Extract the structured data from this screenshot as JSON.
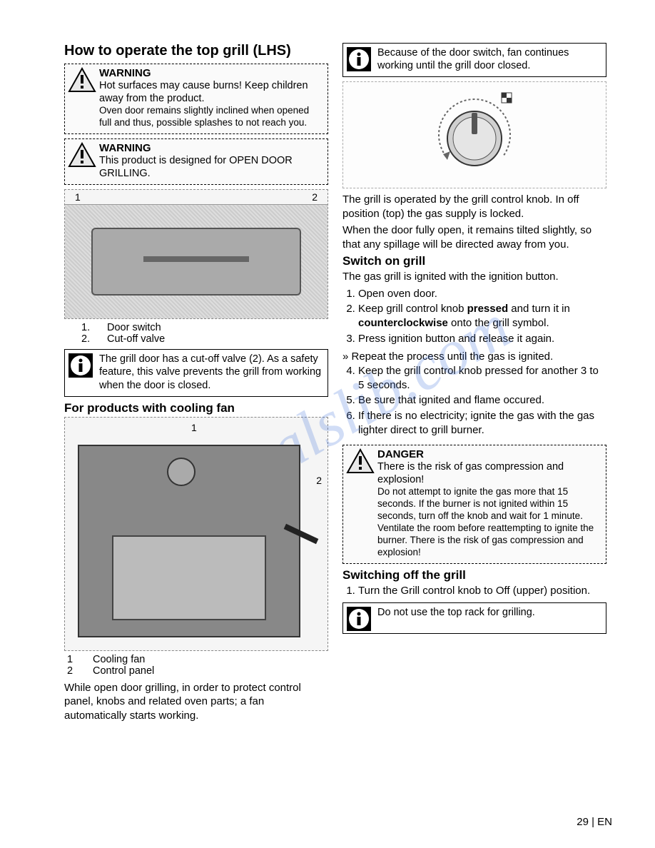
{
  "colors": {
    "text": "#000000",
    "background": "#ffffff",
    "box_border": "#000000",
    "dashed_border": "#888888",
    "diagram_fill": "#cccccc",
    "watermark": "rgba(70,120,220,0.25)"
  },
  "page_footer": "29 | EN",
  "watermark": "manualslib.com",
  "left": {
    "title": "How to operate the top grill (LHS)",
    "warn1": {
      "title": "WARNING",
      "body": "Hot surfaces may cause burns! Keep children away from the product.",
      "body2": "Oven door remains slightly inclined when opened full and thus, possible splashes to not reach you."
    },
    "warn2": {
      "title": "WARNING",
      "body": "This product is designed for OPEN DOOR GRILLING."
    },
    "diagram1_labels": {
      "n1": "1",
      "n2": "2"
    },
    "legend1": [
      {
        "n": "1.",
        "t": "Door switch"
      },
      {
        "n": "2.",
        "t": "Cut-off valve"
      }
    ],
    "info1": "The grill door has a cut-off valve (2). As a safety feature, this valve prevents the grill from working when the door is closed.",
    "subtitle2": "For products with cooling fan",
    "diagram2_labels": {
      "n1": "1",
      "n2": "2"
    },
    "legend2": [
      {
        "n": "1",
        "t": "Cooling fan"
      },
      {
        "n": "2",
        "t": "Control panel"
      }
    ],
    "para_bottom": "While open door grilling, in order to protect control panel, knobs and related oven parts; a fan automatically starts working."
  },
  "right": {
    "info_top": "Because of the door switch, fan continues working until the grill door closed.",
    "para1": "The grill is operated by the grill control knob. In off position (top) the gas supply is locked.",
    "para2": "When the door fully open, it remains tilted slightly, so that any spillage will be directed away from you.",
    "switch_on_title": "Switch on grill",
    "switch_on_intro": "The gas grill is ignited with the ignition button.",
    "steps_on": [
      "Open oven door.",
      "Keep grill control knob <b>pressed</b> and turn it in <b>counterclockwise</b> onto the grill symbol.",
      "Press ignition button and release it again."
    ],
    "repeat": "» Repeat the process until the gas is ignited.",
    "steps_on2": [
      "Keep the grill control knob pressed for another 3 to 5 seconds.",
      "Be sure that ignited and flame occured.",
      "If there is no electricity; ignite the gas with the gas lighter direct to grill burner."
    ],
    "danger": {
      "title": "DANGER",
      "body": "There is the risk of gas compression and explosion!",
      "body2": "Do not attempt to ignite the gas more that 15 seconds. If the burner is not ignited within 15 seconds, turn off the knob and wait for 1 minute. Ventilate the room before reattempting to ignite the burner. There is the risk of gas compression and explosion!"
    },
    "switch_off_title": "Switching off the grill",
    "steps_off": [
      "Turn the Grill control knob to Off (upper) position."
    ],
    "info_bottom": "Do not use the top rack for grilling."
  }
}
